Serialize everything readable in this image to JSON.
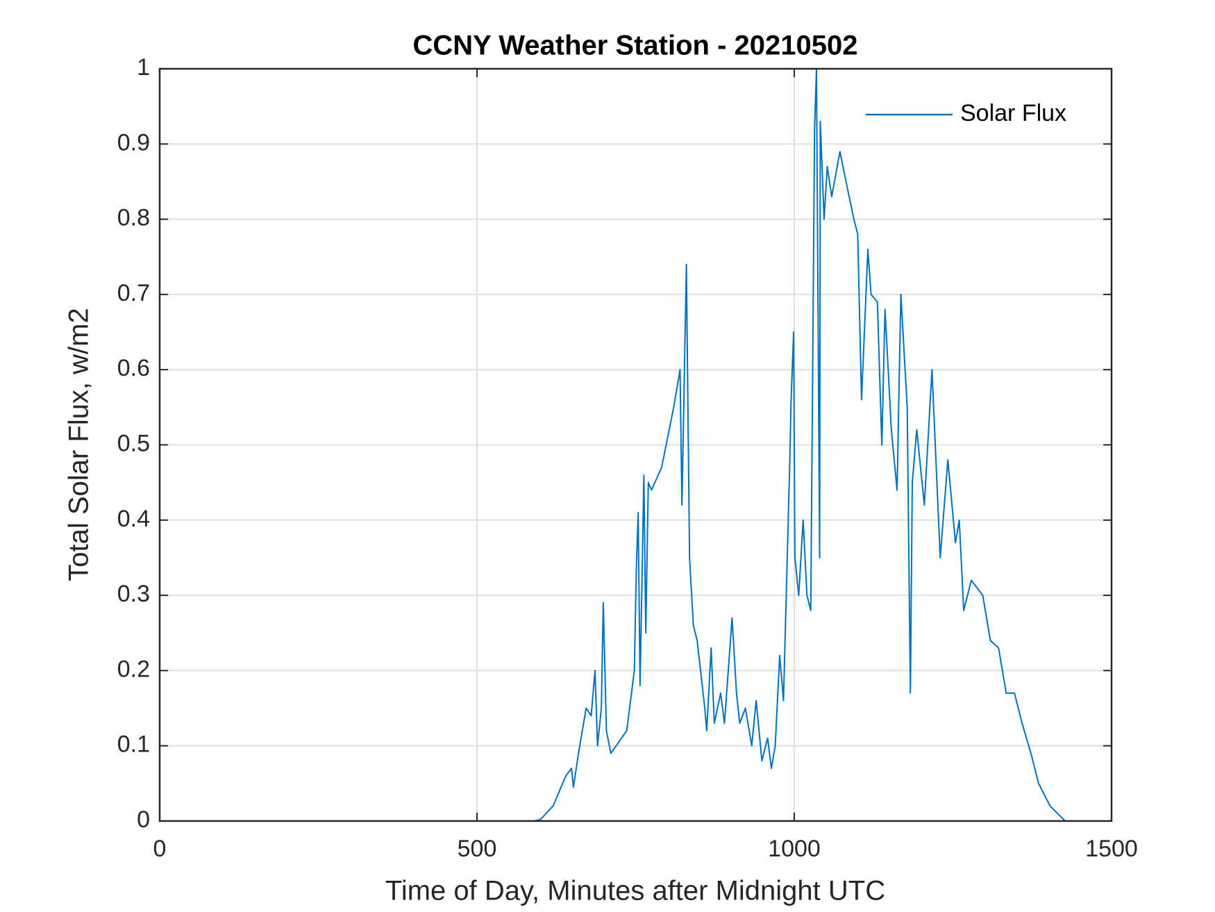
{
  "chart_data": {
    "type": "line",
    "title": "CCNY Weather Station - 20210502",
    "xlabel": "Time of Day, Minutes after Midnight UTC",
    "ylabel": "Total Solar Flux, w/m2",
    "xlim": [
      0,
      1500
    ],
    "ylim": [
      0,
      1
    ],
    "xticks": [
      0,
      500,
      1000,
      1500
    ],
    "yticks": [
      0,
      0.1,
      0.2,
      0.3,
      0.4,
      0.5,
      0.6,
      0.7,
      0.8,
      0.9,
      1
    ],
    "grid": true,
    "legend": "upper right",
    "x": [
      0,
      590,
      600,
      620,
      640,
      649,
      652,
      660,
      672,
      680,
      686,
      690,
      696,
      699,
      704,
      711,
      736,
      748,
      751,
      754,
      757,
      763,
      766,
      770,
      775,
      791,
      810,
      820,
      823,
      830,
      835,
      841,
      847,
      859,
      862,
      869,
      874,
      884,
      890,
      902,
      909,
      914,
      923,
      933,
      940,
      949,
      958,
      964,
      970,
      977,
      983,
      993,
      995,
      999,
      1001,
      1007,
      1014,
      1020,
      1026,
      1032,
      1035,
      1040,
      1041,
      1047,
      1052,
      1059,
      1072,
      1084,
      1094,
      1100,
      1106,
      1116,
      1121,
      1131,
      1138,
      1143,
      1153,
      1162,
      1168,
      1178,
      1183,
      1186,
      1193,
      1205,
      1217,
      1230,
      1242,
      1254,
      1260,
      1267,
      1279,
      1297,
      1309,
      1322,
      1334,
      1347,
      1359,
      1373,
      1385,
      1403,
      1427
    ],
    "series": [
      {
        "name": "Solar Flux",
        "color": "#0072bd",
        "values": [
          0,
          0,
          0.002,
          0.02,
          0.06,
          0.07,
          0.045,
          0.09,
          0.15,
          0.14,
          0.2,
          0.1,
          0.15,
          0.29,
          0.12,
          0.09,
          0.12,
          0.2,
          0.33,
          0.41,
          0.18,
          0.46,
          0.25,
          0.45,
          0.44,
          0.47,
          0.55,
          0.6,
          0.42,
          0.74,
          0.35,
          0.26,
          0.24,
          0.15,
          0.12,
          0.23,
          0.13,
          0.17,
          0.13,
          0.27,
          0.17,
          0.13,
          0.15,
          0.1,
          0.16,
          0.08,
          0.11,
          0.07,
          0.1,
          0.22,
          0.16,
          0.48,
          0.56,
          0.65,
          0.35,
          0.3,
          0.4,
          0.3,
          0.28,
          0.92,
          1.0,
          0.35,
          0.93,
          0.8,
          0.87,
          0.83,
          0.89,
          0.84,
          0.8,
          0.78,
          0.56,
          0.76,
          0.7,
          0.69,
          0.5,
          0.68,
          0.52,
          0.44,
          0.7,
          0.55,
          0.17,
          0.45,
          0.52,
          0.42,
          0.6,
          0.35,
          0.48,
          0.37,
          0.4,
          0.28,
          0.32,
          0.3,
          0.24,
          0.23,
          0.17,
          0.17,
          0.13,
          0.09,
          0.05,
          0.02,
          0
        ]
      }
    ]
  }
}
